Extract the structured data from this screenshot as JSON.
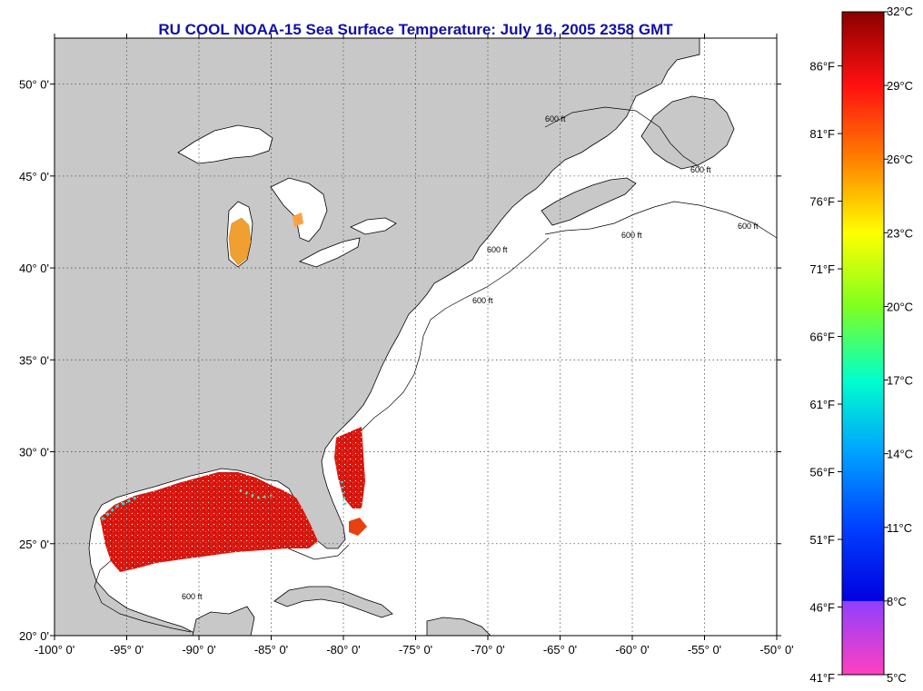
{
  "title": "RU COOL  NOAA-15  Sea Surface Temperature:  July 16, 2005 2358 GMT",
  "map": {
    "lon_range": [
      -100,
      -50
    ],
    "lat_range": [
      20,
      52.5
    ],
    "lon_ticks": [
      {
        "value": -100,
        "label": "-100° 0'"
      },
      {
        "value": -95,
        "label": "-95° 0'"
      },
      {
        "value": -90,
        "label": "-90° 0'"
      },
      {
        "value": -85,
        "label": "-85° 0'"
      },
      {
        "value": -80,
        "label": "-80° 0'"
      },
      {
        "value": -75,
        "label": "-75° 0'"
      },
      {
        "value": -70,
        "label": "-70° 0'"
      },
      {
        "value": -65,
        "label": "-65° 0'"
      },
      {
        "value": -60,
        "label": "-60° 0'"
      },
      {
        "value": -55,
        "label": "-55° 0'"
      },
      {
        "value": -50,
        "label": "-50° 0'"
      }
    ],
    "lat_ticks": [
      {
        "value": 20,
        "label": "20° 0'"
      },
      {
        "value": 25,
        "label": "25° 0'"
      },
      {
        "value": 30,
        "label": "30° 0'"
      },
      {
        "value": 35,
        "label": "35° 0'"
      },
      {
        "value": 40,
        "label": "40° 0'"
      },
      {
        "value": 45,
        "label": "45° 0'"
      },
      {
        "value": 50,
        "label": "50° 0'"
      }
    ],
    "grid": true,
    "contour_label": "600 ft",
    "land_color": "#c8c8c8",
    "ocean_color": "#ffffff"
  },
  "colorbar": {
    "range_c": [
      5,
      32
    ],
    "range_f": [
      41,
      90
    ],
    "celsius_labels": [
      "32°C",
      "29°C",
      "26°C",
      "23°C",
      "20°C",
      "17°C",
      "14°C",
      "11°C",
      "8°C",
      "5°C"
    ],
    "celsius_values": [
      32,
      29,
      26,
      23,
      20,
      17,
      14,
      11,
      8,
      5
    ],
    "fahrenheit_labels": [
      "86°F",
      "81°F",
      "76°F",
      "71°F",
      "66°F",
      "61°F",
      "56°F",
      "51°F",
      "46°F",
      "41°F"
    ],
    "fahrenheit_values": [
      86,
      81,
      76,
      71,
      66,
      61,
      56,
      51,
      46,
      41
    ],
    "colors": [
      {
        "c": 32,
        "color": "#8b0000"
      },
      {
        "c": 29,
        "color": "#ff1010"
      },
      {
        "c": 26,
        "color": "#ff8000"
      },
      {
        "c": 23,
        "color": "#ffff00"
      },
      {
        "c": 20,
        "color": "#80ff20"
      },
      {
        "c": 17,
        "color": "#00ffcc"
      },
      {
        "c": 14,
        "color": "#00a0ff"
      },
      {
        "c": 11,
        "color": "#0040ff"
      },
      {
        "c": 8.01,
        "color": "#0000e0"
      },
      {
        "c": 7.99,
        "color": "#9040ff"
      },
      {
        "c": 5,
        "color": "#ff40c0"
      }
    ]
  }
}
